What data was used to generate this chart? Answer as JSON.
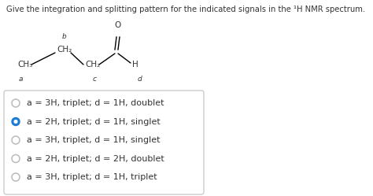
{
  "title": "Give the integration and splitting pattern for the indicated signals in the ¹H NMR spectrum.",
  "options": [
    {
      "text": "a = 3H, triplet; d = 1H, doublet",
      "selected": false
    },
    {
      "text": "a = 2H, triplet; d = 1H, singlet",
      "selected": true
    },
    {
      "text": "a = 3H, triplet, d = 1H, singlet",
      "selected": false
    },
    {
      "text": "a = 2H, triplet; d = 2H, doublet",
      "selected": false
    },
    {
      "text": "a = 3H, triplet; d = 1H, triplet",
      "selected": false
    }
  ],
  "selected_color": "#1a7ad4",
  "unselected_color": "#aaaaaa",
  "background_color": "#ffffff",
  "text_color": "#333333",
  "title_fontsize": 7.2,
  "option_fontsize": 8.0,
  "mol_fontsize": 7.5,
  "mol_label_fontsize": 6.5,
  "molecule": {
    "CH3": "CH₃",
    "a": "a",
    "b": "b",
    "CH2b": "CH₂",
    "CH2c": "CH₂",
    "c": "c",
    "H": "H",
    "d": "d",
    "O": "O"
  }
}
